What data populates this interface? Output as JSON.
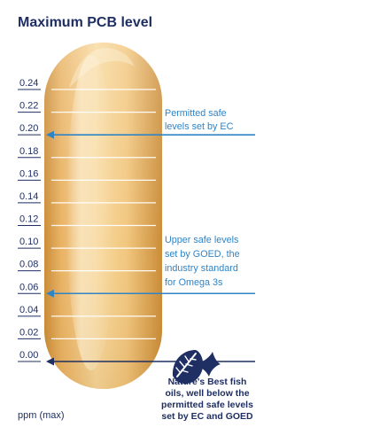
{
  "chart_data": {
    "type": "other",
    "title": "Maximum PCB level",
    "axis_label": "ppm (max)",
    "ticks": [
      0.24,
      0.22,
      0.2,
      0.18,
      0.16,
      0.14,
      0.12,
      0.1,
      0.08,
      0.06,
      0.04,
      0.02,
      0.0
    ],
    "tick_labels": [
      "0.24",
      "0.22",
      "0.20",
      "0.18",
      "0.16",
      "0.14",
      "0.12",
      "0.10",
      "0.08",
      "0.06",
      "0.04",
      "0.02",
      "0.00"
    ],
    "ylim": [
      0,
      0.24
    ],
    "markers": [
      {
        "value": 0.2,
        "label_lines": [
          "Permitted safe",
          "levels set by EC"
        ]
      },
      {
        "value": 0.06,
        "label_lines": [
          "Upper safe levels",
          "set by GOED, the",
          "industry standard",
          "for Omega 3s"
        ]
      },
      {
        "value": 0.0,
        "label_lines": [
          "Nature's Best fish",
          "oils, well below the",
          "permitted safe levels",
          "set by EC and GOED"
        ]
      }
    ]
  },
  "colors": {
    "navy": "#1f2f63",
    "accent_blue": "#2f84c6",
    "capsule_light": "#f7d697",
    "capsule_mid": "#efbb63",
    "capsule_dark": "#c98932",
    "leaf_icon": "#1f2f63"
  },
  "icon": "fish-leaf-icon"
}
